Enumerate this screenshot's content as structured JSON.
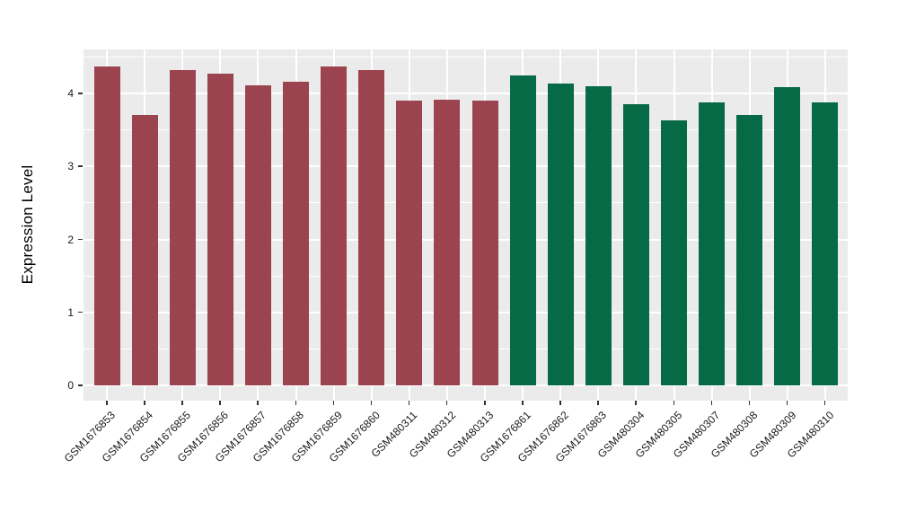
{
  "chart_data": {
    "type": "bar",
    "title": "",
    "xlabel": "",
    "ylabel": "Expression Level",
    "ylim": [
      0,
      4.6
    ],
    "yticks": [
      0,
      1,
      2,
      3,
      4
    ],
    "y_minor_ticks": [
      0.5,
      1.5,
      2.5,
      3.5,
      4.5
    ],
    "grid": "on",
    "legend": "none",
    "panel_background": "#EBEBEB",
    "grid_color": "#FFFFFF",
    "axis_text_color": "#1A1A1A",
    "tick_mark_color": "#333333",
    "categories": [
      "GSM1676853",
      "GSM1676854",
      "GSM1676855",
      "GSM1676856",
      "GSM1676857",
      "GSM1676858",
      "GSM1676859",
      "GSM1676860",
      "GSM480311",
      "GSM480312",
      "GSM480313",
      "GSM1676861",
      "GSM1676862",
      "GSM1676863",
      "GSM480304",
      "GSM480305",
      "GSM480307",
      "GSM480308",
      "GSM480309",
      "GSM480310"
    ],
    "values": [
      4.37,
      3.7,
      4.32,
      4.27,
      4.11,
      4.16,
      4.37,
      4.32,
      3.9,
      3.91,
      3.9,
      4.25,
      4.13,
      4.1,
      3.85,
      3.63,
      3.88,
      3.7,
      4.09,
      3.88
    ],
    "groups": [
      "group1",
      "group1",
      "group1",
      "group1",
      "group1",
      "group1",
      "group1",
      "group1",
      "group1",
      "group1",
      "group1",
      "group2",
      "group2",
      "group2",
      "group2",
      "group2",
      "group2",
      "group2",
      "group2",
      "group2"
    ],
    "group_colors": {
      "group1": "#9B4450",
      "group2": "#076A47"
    }
  }
}
